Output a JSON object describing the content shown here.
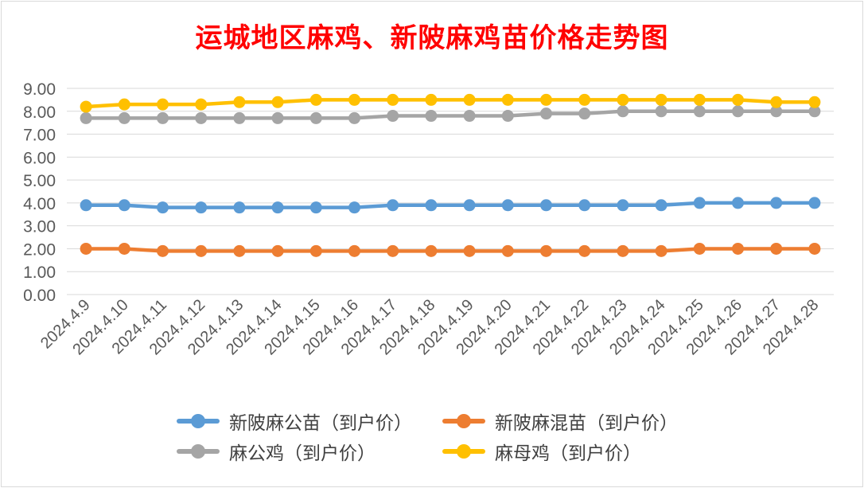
{
  "chart_data": {
    "type": "line",
    "title": "运城地区麻鸡、新陂麻鸡苗价格走势图",
    "xlabel": "",
    "ylabel": "",
    "categories": [
      "2024.4.9",
      "2024.4.10",
      "2024.4.11",
      "2024.4.12",
      "2024.4.13",
      "2024.4.14",
      "2024.4.15",
      "2024.4.16",
      "2024.4.17",
      "2024.4.18",
      "2024.4.19",
      "2024.4.20",
      "2024.4.21",
      "2024.4.22",
      "2024.4.23",
      "2024.4.24",
      "2024.4.25",
      "2024.4.26",
      "2024.4.27",
      "2024.4.28"
    ],
    "ylim": [
      0,
      9
    ],
    "yticks": [
      "0.00",
      "1.00",
      "2.00",
      "3.00",
      "4.00",
      "5.00",
      "6.00",
      "7.00",
      "8.00",
      "9.00"
    ],
    "grid": true,
    "legend": "bottom",
    "series": [
      {
        "name": "新陂麻公苗（到户价）",
        "color": "#5b9bd5",
        "values": [
          3.9,
          3.9,
          3.8,
          3.8,
          3.8,
          3.8,
          3.8,
          3.8,
          3.9,
          3.9,
          3.9,
          3.9,
          3.9,
          3.9,
          3.9,
          3.9,
          4.0,
          4.0,
          4.0,
          4.0
        ]
      },
      {
        "name": "新陂麻混苗（到户价）",
        "color": "#ed7d31",
        "values": [
          2.0,
          2.0,
          1.9,
          1.9,
          1.9,
          1.9,
          1.9,
          1.9,
          1.9,
          1.9,
          1.9,
          1.9,
          1.9,
          1.9,
          1.9,
          1.9,
          2.0,
          2.0,
          2.0,
          2.0
        ]
      },
      {
        "name": "麻公鸡（到户价）",
        "color": "#a5a5a5",
        "values": [
          7.7,
          7.7,
          7.7,
          7.7,
          7.7,
          7.7,
          7.7,
          7.7,
          7.8,
          7.8,
          7.8,
          7.8,
          7.9,
          7.9,
          8.0,
          8.0,
          8.0,
          8.0,
          8.0,
          8.0
        ]
      },
      {
        "name": "麻母鸡（到户价）",
        "color": "#ffc000",
        "values": [
          8.2,
          8.3,
          8.3,
          8.3,
          8.4,
          8.4,
          8.5,
          8.5,
          8.5,
          8.5,
          8.5,
          8.5,
          8.5,
          8.5,
          8.5,
          8.5,
          8.5,
          8.5,
          8.4,
          8.4
        ]
      }
    ]
  }
}
